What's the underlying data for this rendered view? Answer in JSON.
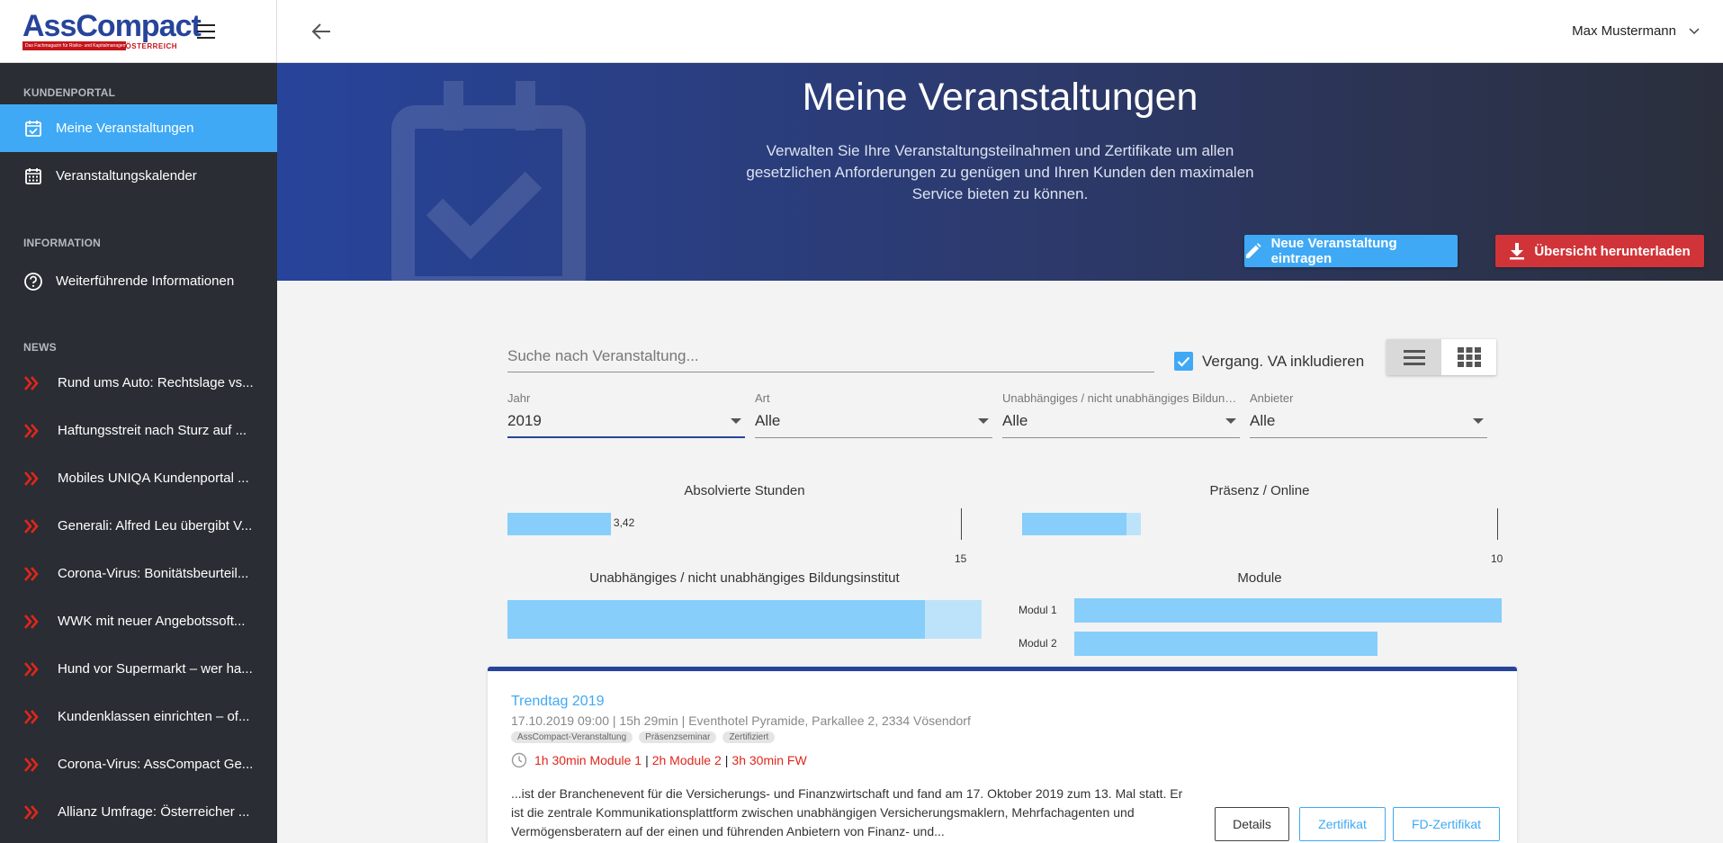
{
  "brand": {
    "logo_main": "AssCompact",
    "logo_tagline": "Das Fachmagazin für Risiko- und Kapitalmanagement",
    "logo_country": "ÖSTERREICH"
  },
  "user": {
    "name": "Max Mustermann"
  },
  "sidebar": {
    "sections": [
      {
        "label": "KUNDENPORTAL"
      },
      {
        "label": "INFORMATION"
      },
      {
        "label": "NEWS"
      }
    ],
    "portal_items": [
      {
        "label": "Meine Veranstaltungen",
        "icon": "calendar-check-icon"
      },
      {
        "label": "Veranstaltungskalender",
        "icon": "calendar-grid-icon"
      }
    ],
    "info_items": [
      {
        "label": "Weiterführende Informationen",
        "icon": "help-circle-icon"
      }
    ],
    "news_items": [
      {
        "label": "Rund ums Auto: Rechtslage vs..."
      },
      {
        "label": "Haftungsstreit nach Sturz auf ..."
      },
      {
        "label": "Mobiles UNIQA Kundenportal ..."
      },
      {
        "label": "Generali: Alfred Leu übergibt V..."
      },
      {
        "label": "Corona-Virus: Bonitätsbeurteil..."
      },
      {
        "label": "WWK mit neuer Angebotssoft..."
      },
      {
        "label": "Hund vor Supermarkt – wer ha..."
      },
      {
        "label": "Kundenklassen einrichten – of..."
      },
      {
        "label": "Corona-Virus: AssCompact Ge..."
      },
      {
        "label": "Allianz Umfrage: Österreicher ..."
      }
    ]
  },
  "hero": {
    "title": "Meine Veranstaltungen",
    "subtitle": "Verwalten Sie Ihre Veranstaltungsteilnahmen und Zertifikate um allen gesetzlichen Anforderungen zu genügen und Ihren Kunden den maximalen Service bieten zu können.",
    "btn_new": "Neue Veranstaltung eintragen",
    "btn_download": "Übersicht herunterladen"
  },
  "filters": {
    "search_placeholder": "Suche nach Veranstaltung...",
    "search_value": "",
    "include_past_label": "Vergang. VA inkludieren",
    "include_past_checked": true,
    "view_mode": "list",
    "year": {
      "label": "Jahr",
      "value": "2019"
    },
    "type": {
      "label": "Art",
      "value": "Alle"
    },
    "institute": {
      "label": "Unabhängiges / nicht unabhängiges Bildungsinstitut",
      "value": "Alle"
    },
    "provider": {
      "label": "Anbieter",
      "value": "Alle"
    }
  },
  "charts": {
    "hours": {
      "title": "Absolvierte Stunden",
      "value": 3.42,
      "value_label": "3,42",
      "max": 15,
      "max_label": "15"
    },
    "presence": {
      "title": "Präsenz / Online",
      "presence": 2.2,
      "online": 0.3,
      "max": 10,
      "max_label": "10"
    },
    "institute": {
      "title": "Unabhängiges / nicht unabhängiges Bildungsinstitut",
      "independent": 0.88,
      "dependent": 0.12
    },
    "modules": {
      "title": "Module",
      "items": [
        {
          "label": "Modul 1",
          "value": 1.0
        },
        {
          "label": "Modul 2",
          "value": 0.71
        }
      ]
    }
  },
  "event": {
    "title": "Trendtag 2019",
    "meta": "17.10.2019 09:00 | 15h 29min | Eventhotel Pyramide, Parkallee 2, 2334 Vösendorf",
    "tags": [
      "AssCompact-Veranstaltung",
      "Präsenzseminar",
      "Zertifiziert"
    ],
    "hours_m1": "1h 30min Module 1",
    "hours_m2": "2h Module 2",
    "hours_fw": "3h 30min FW",
    "separator": "|",
    "description": "...ist der Branchenevent für die Versicherungs- und Finanzwirtschaft und fand am 17. Oktober 2019 zum 13. Mal statt. Er ist die zentrale Kommunikationsplattform zwischen unabhängigen Versicherungsmaklern, Mehrfachagenten und Vermögensberatern auf der einen und führenden Anbietern von Finanz- und...",
    "btn_details": "Details",
    "btn_cert": "Zertifikat",
    "btn_fd_cert": "FD-Zertifikat"
  },
  "colors": {
    "accent": "#3fa9f5",
    "brand_blue": "#27449b",
    "danger": "#d13438",
    "sidebar": "#2a2d33",
    "bar": "#87cefa"
  }
}
